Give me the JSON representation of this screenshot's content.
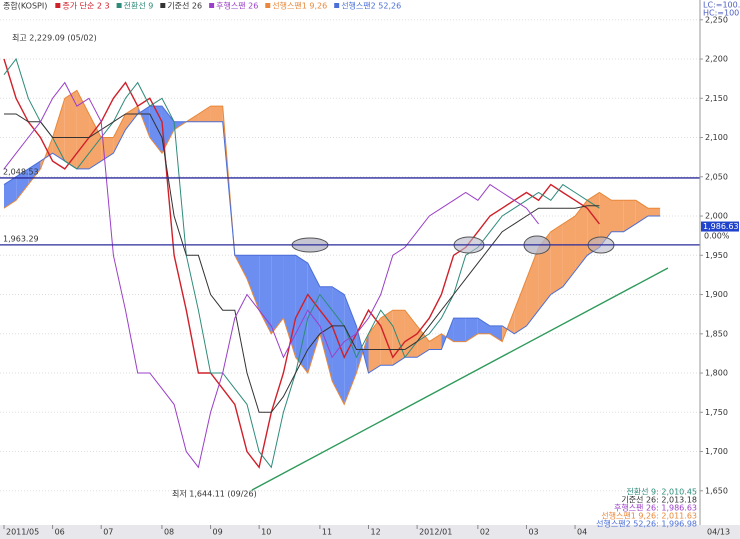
{
  "chart_data": {
    "type": "ichimoku",
    "title": "종합(KOSPI)",
    "categories": [
      "2011/05",
      null,
      null,
      null,
      "06",
      null,
      null,
      null,
      "07",
      null,
      null,
      null,
      null,
      "08",
      null,
      null,
      null,
      "09",
      null,
      null,
      null,
      "10",
      null,
      null,
      null,
      null,
      "11",
      null,
      null,
      null,
      "12",
      null,
      null,
      null,
      "2012/01",
      null,
      null,
      null,
      null,
      "02",
      null,
      null,
      null,
      "03",
      null,
      null,
      null,
      "04",
      null,
      null,
      null,
      null,
      null,
      null,
      null
    ],
    "x_end_label": "04/13",
    "series": [
      {
        "name": "종가 단순 2 3",
        "color": "#d0202a",
        "values": [
          2200,
          2150,
          2120,
          2100,
          2070,
          2060,
          2080,
          2100,
          2120,
          2150,
          2170,
          2140,
          2150,
          2120,
          1950,
          1880,
          1800,
          1800,
          1780,
          1760,
          1700,
          1680,
          1750,
          1800,
          1870,
          1900,
          1880,
          1860,
          1820,
          1850,
          1880,
          1860,
          1820,
          1840,
          1850,
          1870,
          1900,
          1950,
          1960,
          1980,
          2000,
          2010,
          2020,
          2030,
          2020,
          2040,
          2030,
          2020,
          2010,
          1990,
          null,
          null,
          null,
          null,
          null
        ]
      },
      {
        "name": "전환선 9",
        "color": "#2e8b7a",
        "values": [
          2180,
          2200,
          2150,
          2120,
          2100,
          2070,
          2060,
          2080,
          2100,
          2120,
          2150,
          2170,
          2140,
          2150,
          2120,
          1950,
          1880,
          1800,
          1800,
          1780,
          1760,
          1700,
          1680,
          1750,
          1800,
          1870,
          1900,
          1880,
          1860,
          1820,
          1850,
          1880,
          1860,
          1820,
          1840,
          1850,
          1870,
          1900,
          1950,
          1960,
          1980,
          2000,
          2010,
          2020,
          2030,
          2020,
          2040,
          2030,
          2020,
          2010,
          null,
          null,
          null,
          null,
          null
        ]
      },
      {
        "name": "기준선 26",
        "color": "#333333",
        "values": [
          2130,
          2130,
          2120,
          2120,
          2100,
          2100,
          2100,
          2100,
          2110,
          2120,
          2130,
          2130,
          2130,
          2100,
          2000,
          1950,
          1950,
          1900,
          1880,
          1880,
          1800,
          1750,
          1750,
          1770,
          1800,
          1830,
          1850,
          1860,
          1860,
          1830,
          1830,
          1830,
          1830,
          1830,
          1840,
          1860,
          1880,
          1900,
          1920,
          1940,
          1960,
          1980,
          1990,
          2000,
          2010,
          2010,
          2010,
          2010,
          2013,
          2013,
          null,
          null,
          null,
          null,
          null
        ]
      },
      {
        "name": "후행스팬 26",
        "color": "#9b3fc8",
        "values": [
          2060,
          2080,
          2100,
          2120,
          2150,
          2170,
          2140,
          2150,
          2120,
          1950,
          1880,
          1800,
          1800,
          1780,
          1760,
          1700,
          1680,
          1750,
          1800,
          1870,
          1900,
          1880,
          1860,
          1820,
          1850,
          1880,
          1860,
          1820,
          1840,
          1850,
          1870,
          1900,
          1950,
          1960,
          1980,
          2000,
          2010,
          2020,
          2030,
          2020,
          2040,
          2030,
          2020,
          2010,
          1990,
          null,
          null,
          null,
          null,
          null,
          null,
          null,
          null,
          null,
          null
        ]
      },
      {
        "name": "선행스팬1 9,26",
        "color": "#e8883a",
        "values": [
          2010,
          2020,
          2040,
          2060,
          2100,
          2150,
          2160,
          2130,
          2100,
          2100,
          2130,
          2140,
          2100,
          2080,
          2110,
          2120,
          2130,
          2140,
          2140,
          1950,
          1920,
          1880,
          1850,
          1870,
          1820,
          1800,
          1850,
          1790,
          1760,
          1800,
          1850,
          1870,
          1880,
          1880,
          1860,
          1840,
          1850,
          1840,
          1840,
          1850,
          1850,
          1840,
          1880,
          1920,
          1960,
          1980,
          1990,
          2000,
          2020,
          2030,
          2020,
          2020,
          2020,
          2010,
          2010
        ]
      },
      {
        "name": "선행스팬2 52,26",
        "color": "#4a6fd8",
        "values": [
          2040,
          2050,
          2060,
          2070,
          2080,
          2070,
          2060,
          2060,
          2070,
          2080,
          2110,
          2130,
          2140,
          2140,
          2120,
          2120,
          2120,
          2120,
          2120,
          1950,
          1950,
          1950,
          1950,
          1950,
          1950,
          1940,
          1910,
          1910,
          1900,
          1860,
          1800,
          1810,
          1810,
          1820,
          1820,
          1830,
          1830,
          1870,
          1870,
          1870,
          1860,
          1860,
          1850,
          1860,
          1880,
          1900,
          1910,
          1930,
          1950,
          1960,
          1980,
          1980,
          1990,
          2000,
          2000
        ]
      }
    ],
    "cloud_colors": [
      "#f5a46a",
      "#6c8ef0"
    ],
    "ylim": [
      1623,
      2265
    ],
    "yticks": [
      {
        "value": 2250,
        "label": "2,250"
      },
      {
        "value": 2200,
        "label": "2,200"
      },
      {
        "value": 2150,
        "label": "2,150"
      },
      {
        "value": 2100,
        "label": "2,100"
      },
      {
        "value": 2050,
        "label": "2,050"
      },
      {
        "value": 2000,
        "label": "2,000"
      },
      {
        "value": 1950,
        "label": "1,950"
      },
      {
        "value": 1900,
        "label": "1,900"
      },
      {
        "value": 1850,
        "label": "1,850"
      },
      {
        "value": 1800,
        "label": "1,800"
      },
      {
        "value": 1750,
        "label": "1,750"
      },
      {
        "value": 1700,
        "label": "1,700"
      },
      {
        "value": 1650,
        "label": "1,650"
      }
    ],
    "grid": true,
    "hlines": [
      {
        "value": 2048.53,
        "label": "2,048.53"
      },
      {
        "value": 1963.29,
        "label": "1,963.29"
      }
    ],
    "last_price": {
      "value": 1986.63,
      "label": "1,986.63"
    },
    "change_label": "0.00%",
    "scale_labels": [
      "LC:=100.00",
      "HC:=100.00"
    ],
    "annotations": [
      "최고 2,229.09 (05/02)",
      "최저 1,644.11 (09/26)"
    ],
    "summary": [
      "전환선 9: 2,010.45",
      "기준선 26: 2,013.18",
      "후행스팬 26: 1,986.63",
      "선행스팬1 9,26: 2,011.63",
      "선행스팬2 52,26: 1,996.98"
    ]
  }
}
